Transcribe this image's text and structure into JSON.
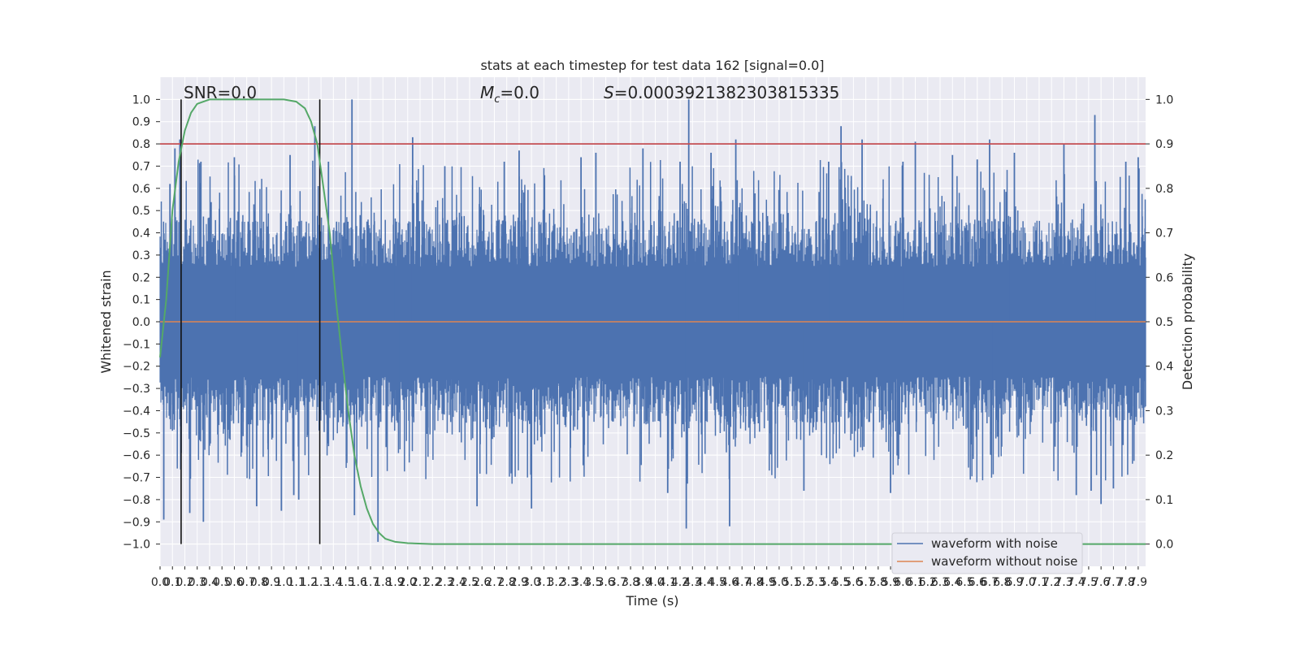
{
  "chart_data": {
    "type": "line",
    "title": "stats at each timestep for test data 162 [signal=0.0]",
    "xlabel": "Time (s)",
    "ylabel_left": "Whitened strain",
    "ylabel_right": "Detection probability",
    "xlim": [
      0.0,
      7.96
    ],
    "ylim_left": [
      -1.1,
      1.1
    ],
    "ylim_right": [
      -0.05,
      1.05
    ],
    "x_ticks": [
      "0.0",
      "0.1",
      "0.2",
      "0.3",
      "0.4",
      "0.5",
      "0.6",
      "0.7",
      "0.8",
      "0.9",
      "1.0",
      "1.1",
      "1.2",
      "1.3",
      "1.4",
      "1.5",
      "1.6",
      "1.7",
      "1.8",
      "1.9",
      "2.0",
      "2.1",
      "2.2",
      "2.3",
      "2.4",
      "2.5",
      "2.6",
      "2.7",
      "2.8",
      "2.9",
      "3.0",
      "3.1",
      "3.2",
      "3.3",
      "3.4",
      "3.5",
      "3.6",
      "3.7",
      "3.8",
      "3.9",
      "4.0",
      "4.1",
      "4.2",
      "4.3",
      "4.4",
      "4.5",
      "4.6",
      "4.7",
      "4.8",
      "4.9",
      "5.0",
      "5.1",
      "5.2",
      "5.3",
      "5.4",
      "5.5",
      "5.6",
      "5.7",
      "5.8",
      "5.9",
      "6.0",
      "6.1",
      "6.2",
      "6.3",
      "6.4",
      "6.5",
      "6.6",
      "6.7",
      "6.8",
      "6.9",
      "7.0",
      "7.1",
      "7.2",
      "7.3",
      "7.4",
      "7.5",
      "7.6",
      "7.7",
      "7.8",
      "7.9"
    ],
    "y_ticks_left": [
      "-1.0",
      "-0.9",
      "-0.8",
      "-0.7",
      "-0.6",
      "-0.5",
      "-0.4",
      "-0.3",
      "-0.2",
      "-0.1",
      "0.0",
      "0.1",
      "0.2",
      "0.3",
      "0.4",
      "0.5",
      "0.6",
      "0.7",
      "0.8",
      "0.9",
      "1.0"
    ],
    "y_ticks_right": [
      "0.0",
      "0.1",
      "0.2",
      "0.3",
      "0.4",
      "0.5",
      "0.6",
      "0.7",
      "0.8",
      "0.9",
      "1.0"
    ],
    "annotations": {
      "snr": "SNR=0.0",
      "mc_symbol": "M",
      "mc_sub": "c",
      "mc_value": "=0.0",
      "s_symbol": "S",
      "s_value": "=0.0003921382303815335"
    },
    "threshold": {
      "value": 0.8,
      "color": "#c44e52"
    },
    "vertical_markers": [
      0.17,
      1.29
    ],
    "legend": {
      "placement": "lower-right",
      "items": [
        {
          "label": "waveform with noise",
          "color": "#4c72b0"
        },
        {
          "label": "waveform without noise",
          "color": "#dd8452"
        }
      ]
    },
    "series": [
      {
        "name": "waveform with noise",
        "color": "#4c72b0",
        "envelope_typical": 0.45,
        "peaks": [
          [
            0.03,
            -0.89
          ],
          [
            0.08,
            0.62
          ],
          [
            0.12,
            0.78
          ],
          [
            0.16,
            0.82
          ],
          [
            0.17,
            -0.59
          ],
          [
            0.24,
            -0.86
          ],
          [
            0.33,
            0.72
          ],
          [
            0.35,
            -0.9
          ],
          [
            0.6,
            0.74
          ],
          [
            0.78,
            -0.83
          ],
          [
            0.98,
            -0.85
          ],
          [
            1.05,
            0.75
          ],
          [
            1.08,
            -0.78
          ],
          [
            1.12,
            -0.8
          ],
          [
            1.25,
            0.88
          ],
          [
            1.36,
            0.72
          ],
          [
            1.55,
            1.0
          ],
          [
            1.57,
            -0.87
          ],
          [
            1.76,
            -0.99
          ],
          [
            2.04,
            0.83
          ],
          [
            2.3,
            0.7
          ],
          [
            2.56,
            -0.83
          ],
          [
            2.78,
            0.72
          ],
          [
            2.9,
            0.77
          ],
          [
            3.0,
            -0.84
          ],
          [
            3.4,
            0.74
          ],
          [
            3.52,
            0.76
          ],
          [
            3.9,
            0.78
          ],
          [
            4.1,
            -0.77
          ],
          [
            4.2,
            0.72
          ],
          [
            4.25,
            -0.93
          ],
          [
            4.27,
            1.0
          ],
          [
            4.45,
            0.76
          ],
          [
            4.6,
            -0.92
          ],
          [
            4.65,
            0.82
          ],
          [
            5.2,
            -0.76
          ],
          [
            5.4,
            0.72
          ],
          [
            5.5,
            0.88
          ],
          [
            5.67,
            0.82
          ],
          [
            5.9,
            -0.77
          ],
          [
            6.0,
            0.72
          ],
          [
            6.1,
            0.81
          ],
          [
            6.4,
            0.75
          ],
          [
            6.6,
            0.73
          ],
          [
            6.7,
            0.82
          ],
          [
            6.9,
            0.76
          ],
          [
            7.3,
            0.8
          ],
          [
            7.4,
            -0.78
          ],
          [
            7.52,
            -0.76
          ],
          [
            7.55,
            0.93
          ],
          [
            7.6,
            -0.82
          ],
          [
            7.7,
            -0.75
          ],
          [
            7.8,
            0.72
          ],
          [
            7.9,
            0.74
          ]
        ]
      },
      {
        "name": "waveform without noise",
        "color": "#dd8452",
        "values": "constant 0.0"
      },
      {
        "name": "detection probability",
        "color": "#55a868",
        "axis": "right",
        "points": [
          [
            0.0,
            0.42
          ],
          [
            0.05,
            0.55
          ],
          [
            0.1,
            0.75
          ],
          [
            0.15,
            0.86
          ],
          [
            0.2,
            0.93
          ],
          [
            0.25,
            0.97
          ],
          [
            0.3,
            0.99
          ],
          [
            0.4,
            1.0
          ],
          [
            0.6,
            1.0
          ],
          [
            1.0,
            1.0
          ],
          [
            1.1,
            0.995
          ],
          [
            1.17,
            0.98
          ],
          [
            1.22,
            0.95
          ],
          [
            1.27,
            0.9
          ],
          [
            1.32,
            0.8
          ],
          [
            1.37,
            0.7
          ],
          [
            1.42,
            0.55
          ],
          [
            1.47,
            0.42
          ],
          [
            1.52,
            0.3
          ],
          [
            1.57,
            0.2
          ],
          [
            1.62,
            0.13
          ],
          [
            1.67,
            0.08
          ],
          [
            1.72,
            0.045
          ],
          [
            1.77,
            0.025
          ],
          [
            1.82,
            0.012
          ],
          [
            1.9,
            0.005
          ],
          [
            2.0,
            0.002
          ],
          [
            2.2,
            0.0
          ],
          [
            4.0,
            0.0
          ],
          [
            7.96,
            0.0
          ]
        ]
      }
    ]
  }
}
